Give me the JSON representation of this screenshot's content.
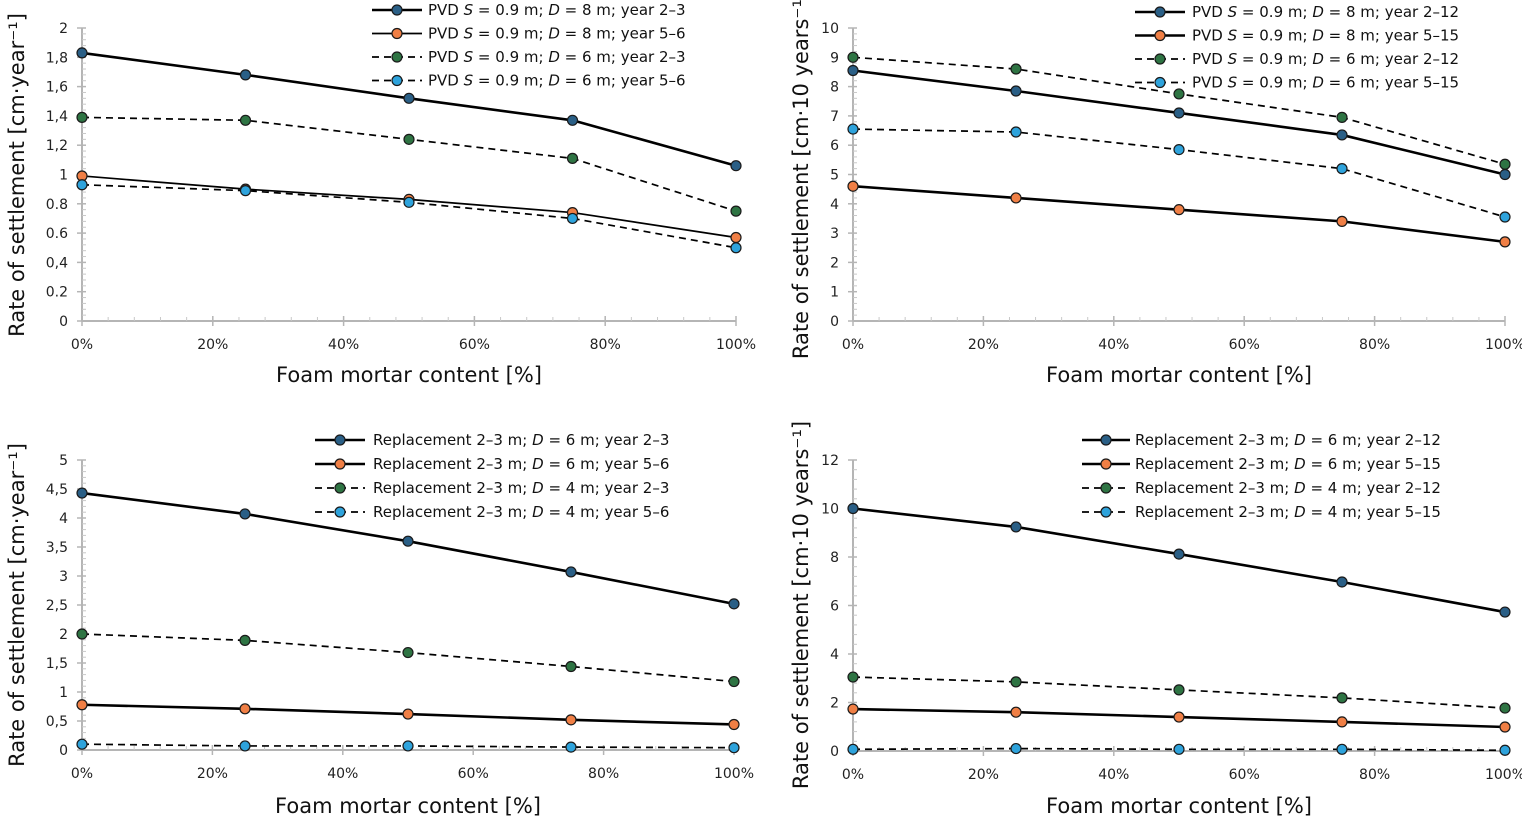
{
  "chart_data": [
    {
      "type": "line",
      "id": "pvd-annual",
      "xlabel": "Foam mortar content [%]",
      "ylabel": "Rate of settlement [cm·year⁻¹]",
      "x": [
        0,
        25,
        50,
        75,
        100
      ],
      "xlim": [
        0,
        100
      ],
      "xticks": [
        "0%",
        "20%",
        "40%",
        "60%",
        "80%",
        "100%"
      ],
      "xtick_values": [
        0,
        20,
        40,
        60,
        80,
        100
      ],
      "ylim": [
        0,
        2
      ],
      "yticks": [
        "0",
        "0.2",
        "0,4",
        "0.6",
        "0.8",
        "1",
        "1,2",
        "1,4",
        "1,6",
        "1,8",
        "2"
      ],
      "ytick_values": [
        0,
        0.2,
        0.4,
        0.6,
        0.8,
        1,
        1.2,
        1.4,
        1.6,
        1.8,
        2
      ],
      "legend_position": "top-right",
      "grid": false,
      "series": [
        {
          "name": "PVD S = 0.9 m; D = 8 m; year 2–3",
          "label_parts": [
            "PVD ",
            "S",
            " = 0.9 m; ",
            "D",
            " = 8 m; year 2–3"
          ],
          "color": "#2a5f86",
          "dash": false,
          "bold": true,
          "values": [
            1.83,
            1.68,
            1.52,
            1.37,
            1.06
          ]
        },
        {
          "name": "PVD S = 0.9 m; D = 8 m; year 5–6",
          "label_parts": [
            "PVD ",
            "S",
            " = 0.9 m; ",
            "D",
            " = 8 m; year 5–6"
          ],
          "color": "#f07f45",
          "dash": false,
          "bold": false,
          "values": [
            0.99,
            0.9,
            0.83,
            0.74,
            0.57
          ]
        },
        {
          "name": "PVD S = 0.9 m; D = 6 m; year 2–3",
          "label_parts": [
            "PVD ",
            "S",
            " = 0.9 m; ",
            "D",
            " = 6 m; year 2–3"
          ],
          "color": "#2e7443",
          "dash": true,
          "bold": false,
          "values": [
            1.39,
            1.37,
            1.24,
            1.11,
            0.75
          ]
        },
        {
          "name": "PVD S = 0.9 m; D = 6 m; year 5–6",
          "label_parts": [
            "PVD ",
            "S",
            " = 0.9 m; ",
            "D",
            " = 6 m; year 5–6"
          ],
          "color": "#2ea3dc",
          "dash": true,
          "bold": false,
          "values": [
            0.93,
            0.89,
            0.81,
            0.7,
            0.5
          ]
        }
      ]
    },
    {
      "type": "line",
      "id": "pvd-decade",
      "xlabel": "Foam mortar content [%]",
      "ylabel": "Rate of settlement [cm·10 years⁻¹]",
      "x": [
        0,
        25,
        50,
        75,
        100
      ],
      "xlim": [
        0,
        100
      ],
      "xticks": [
        "0%",
        "20%",
        "40%",
        "60%",
        "80%",
        "100%"
      ],
      "xtick_values": [
        0,
        20,
        40,
        60,
        80,
        100
      ],
      "ylim": [
        0,
        10
      ],
      "yticks": [
        "0",
        "1",
        "2",
        "3",
        "4",
        "5",
        "6",
        "7",
        "8",
        "9",
        "10"
      ],
      "ytick_values": [
        0,
        1,
        2,
        3,
        4,
        5,
        6,
        7,
        8,
        9,
        10
      ],
      "legend_position": "top-right",
      "grid": false,
      "series": [
        {
          "name": "PVD S = 0.9 m; D = 8 m; year 2–12",
          "label_parts": [
            "PVD ",
            "S",
            " = 0.9 m; ",
            "D",
            " = 8 m; year 2–12"
          ],
          "color": "#2a5f86",
          "dash": false,
          "bold": true,
          "values": [
            8.55,
            7.85,
            7.1,
            6.35,
            5.0
          ]
        },
        {
          "name": "PVD S = 0.9 m; D = 8 m; year 5–15",
          "label_parts": [
            "PVD ",
            "S",
            " = 0.9 m; ",
            "D",
            " = 8 m; year 5–15"
          ],
          "color": "#f07f45",
          "dash": false,
          "bold": true,
          "values": [
            4.6,
            4.2,
            3.8,
            3.4,
            2.7
          ]
        },
        {
          "name": "PVD S = 0.9 m; D = 6 m; year 2–12",
          "label_parts": [
            "PVD ",
            "S",
            " = 0.9 m; ",
            "D",
            " = 6 m; year 2–12"
          ],
          "color": "#2e7443",
          "dash": true,
          "bold": false,
          "values": [
            9.0,
            8.6,
            7.75,
            6.95,
            5.35
          ]
        },
        {
          "name": "PVD S = 0.9 m; D = 6 m; year 5–15",
          "label_parts": [
            "PVD ",
            "S",
            " = 0.9 m; ",
            "D",
            " = 6 m; year 5–15"
          ],
          "color": "#2ea3dc",
          "dash": true,
          "bold": false,
          "values": [
            6.55,
            6.45,
            5.85,
            5.2,
            3.55
          ]
        }
      ]
    },
    {
      "type": "line",
      "id": "replacement-annual",
      "xlabel": "Foam mortar content [%]",
      "ylabel": "Rate of settlement [cm·year⁻¹]",
      "x": [
        0,
        25,
        50,
        75,
        100
      ],
      "xlim": [
        0,
        100
      ],
      "xticks": [
        "0%",
        "20%",
        "40%",
        "60%",
        "80%",
        "100%"
      ],
      "xtick_values": [
        0,
        20,
        40,
        60,
        80,
        100
      ],
      "ylim": [
        0,
        5
      ],
      "yticks": [
        "0",
        "0,5",
        "1",
        "1,5",
        "2",
        "2,5",
        "3",
        "3,5",
        "4",
        "4,5",
        "5"
      ],
      "ytick_values": [
        0,
        0.5,
        1,
        1.5,
        2,
        2.5,
        3,
        3.5,
        4,
        4.5,
        5
      ],
      "legend_position": "top-right",
      "grid": false,
      "series": [
        {
          "name": "Replacement 2–3 m; D = 6 m; year 2–3",
          "label_parts": [
            "Replacement 2–3 m; ",
            "D",
            " = 6 m; year 2–3"
          ],
          "color": "#2a5f86",
          "dash": false,
          "bold": true,
          "values": [
            4.43,
            4.07,
            3.6,
            3.07,
            2.52
          ]
        },
        {
          "name": "Replacement 2–3 m; D = 6 m; year 5–6",
          "label_parts": [
            "Replacement 2–3 m; ",
            "D",
            " = 6 m; year 5–6"
          ],
          "color": "#f07f45",
          "dash": false,
          "bold": true,
          "values": [
            0.78,
            0.71,
            0.62,
            0.52,
            0.44
          ]
        },
        {
          "name": "Replacement 2–3 m; D = 4 m; year 2–3",
          "label_parts": [
            "Replacement 2–3 m; ",
            "D",
            " = 4 m; year 2–3"
          ],
          "color": "#2e7443",
          "dash": true,
          "bold": false,
          "values": [
            2.0,
            1.89,
            1.68,
            1.44,
            1.18
          ]
        },
        {
          "name": "Replacement 2–3 m; D = 4 m; year 5–6",
          "label_parts": [
            "Replacement 2–3 m; ",
            "D",
            " = 4 m; year 5–6"
          ],
          "color": "#2ea3dc",
          "dash": true,
          "bold": false,
          "values": [
            0.1,
            0.07,
            0.07,
            0.05,
            0.04
          ]
        }
      ]
    },
    {
      "type": "line",
      "id": "replacement-decade",
      "xlabel": "Foam mortar content [%]",
      "ylabel": "Rate of settlement [cm·10 years⁻¹]",
      "x": [
        0,
        25,
        50,
        75,
        100
      ],
      "xlim": [
        0,
        100
      ],
      "xticks": [
        "0%",
        "20%",
        "40%",
        "60%",
        "80%",
        "100%"
      ],
      "xtick_values": [
        0,
        20,
        40,
        60,
        80,
        100
      ],
      "ylim": [
        0,
        12
      ],
      "yticks": [
        "0",
        "2",
        "4",
        "6",
        "8",
        "10",
        "12"
      ],
      "ytick_values": [
        0,
        2,
        4,
        6,
        8,
        10,
        12
      ],
      "legend_position": "top-right",
      "grid": false,
      "series": [
        {
          "name": "Replacement 2–3 m; D = 6 m; year 2–12",
          "label_parts": [
            "Replacement 2–3 m; ",
            "D",
            " = 6 m; year 2–12"
          ],
          "color": "#2a5f86",
          "dash": false,
          "bold": true,
          "values": [
            10.0,
            9.24,
            8.12,
            6.97,
            5.73
          ]
        },
        {
          "name": "Replacement 2–3 m; D = 6 m; year 5–15",
          "label_parts": [
            "Replacement 2–3 m; ",
            "D",
            " = 6 m; year 5–15"
          ],
          "color": "#f07f45",
          "dash": false,
          "bold": true,
          "values": [
            1.73,
            1.6,
            1.4,
            1.2,
            0.99
          ]
        },
        {
          "name": "Replacement 2–3 m; D = 4 m; year 2–12",
          "label_parts": [
            "Replacement 2–3 m; ",
            "D",
            " = 4 m; year 2–12"
          ],
          "color": "#2e7443",
          "dash": true,
          "bold": false,
          "values": [
            3.05,
            2.85,
            2.52,
            2.19,
            1.77
          ]
        },
        {
          "name": "Replacement 2–3 m; D = 4 m; year 5–15",
          "label_parts": [
            "Replacement 2–3 m; ",
            "D",
            " = 4 m; year 5–15"
          ],
          "color": "#2ea3dc",
          "dash": true,
          "bold": false,
          "values": [
            0.07,
            0.1,
            0.07,
            0.07,
            0.03
          ]
        }
      ]
    }
  ]
}
